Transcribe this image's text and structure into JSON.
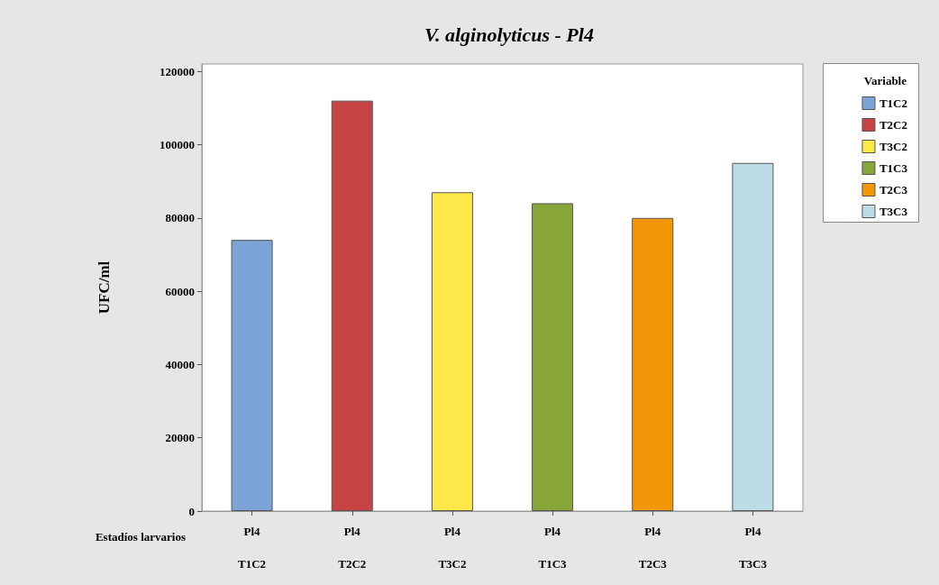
{
  "chart_data": {
    "type": "bar",
    "title": "V. alginolyticus - Pl4",
    "ylabel": "UFC/ml",
    "xlabel": "Estadíos larvarios",
    "legend_title": "Variable",
    "legend": "right",
    "stacked": true,
    "grid": false,
    "categories": [
      "Pl4\nT1C2",
      "Pl4\nT2C2",
      "Pl4\nT3C2",
      "Pl4\nT1C3",
      "Pl4\nT2C3",
      "Pl4\nT3C3"
    ],
    "ylim": [
      0,
      122000
    ],
    "yticks": [
      0,
      20000,
      40000,
      60000,
      80000,
      100000,
      120000
    ],
    "series": [
      {
        "name": "T1C2",
        "color": "#7ba3d6",
        "values": [
          74000,
          null,
          null,
          null,
          null,
          null
        ]
      },
      {
        "name": "T2C2",
        "color": "#c84444",
        "values": [
          null,
          112000,
          null,
          null,
          null,
          null
        ]
      },
      {
        "name": "T3C2",
        "color": "#fde84a",
        "values": [
          null,
          null,
          87000,
          null,
          null,
          null
        ]
      },
      {
        "name": "T1C3",
        "color": "#88a53a",
        "values": [
          null,
          null,
          null,
          84000,
          null,
          null
        ]
      },
      {
        "name": "T2C3",
        "color": "#f39608",
        "values": [
          null,
          null,
          null,
          null,
          80000,
          null
        ]
      },
      {
        "name": "T3C3",
        "color": "#bcdce6",
        "values": [
          null,
          null,
          null,
          null,
          null,
          95000
        ]
      }
    ]
  }
}
